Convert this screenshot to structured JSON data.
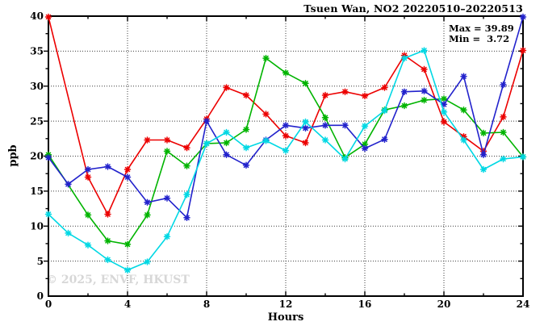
{
  "window": {
    "title": "Tsuen Wan, NO2 20220510–20220513"
  },
  "stats": {
    "max_line": "Max = 39.89",
    "min_line": "Min =  3.72"
  },
  "watermark": "© 2025, ENVF, HKUST",
  "chart_data": {
    "type": "line",
    "title": "Tsuen Wan, NO2 20220510–20220513",
    "xlabel": "Hours",
    "ylabel": "ppb",
    "xlim": [
      0,
      24
    ],
    "ylim": [
      0,
      40
    ],
    "x_ticks": [
      0,
      4,
      8,
      12,
      16,
      20,
      24
    ],
    "x_minor_step": 2,
    "y_ticks": [
      0,
      5,
      10,
      15,
      20,
      25,
      30,
      35,
      40
    ],
    "y_minor_step": 2.5,
    "grid": "dotted lines at major ticks",
    "legend": "none",
    "max_value": 39.89,
    "min_value": 3.72,
    "x": [
      0,
      1,
      2,
      3,
      4,
      5,
      6,
      7,
      8,
      9,
      10,
      11,
      12,
      13,
      14,
      15,
      16,
      17,
      18,
      19,
      20,
      21,
      22,
      23,
      24
    ],
    "series": [
      {
        "name": "series-red",
        "color": "#ec0000",
        "values": [
          39.89,
          null,
          17.0,
          11.7,
          18.1,
          22.3,
          22.3,
          21.2,
          25.3,
          29.8,
          28.7,
          26.0,
          22.9,
          21.9,
          28.7,
          29.2,
          28.6,
          29.8,
          34.4,
          32.4,
          24.9,
          22.8,
          20.7,
          25.6,
          35.1
        ]
      },
      {
        "name": "series-green",
        "color": "#00b400",
        "values": [
          20.2,
          null,
          11.6,
          7.9,
          7.4,
          11.6,
          20.7,
          18.6,
          21.8,
          21.9,
          23.8,
          34.0,
          31.9,
          30.4,
          25.5,
          19.8,
          21.7,
          26.6,
          27.2,
          28.0,
          28.2,
          26.6,
          23.3,
          23.4,
          19.9
        ]
      },
      {
        "name": "series-blue",
        "color": "#2222cc",
        "values": [
          19.8,
          16.0,
          18.1,
          18.5,
          17.0,
          13.4,
          14.0,
          11.2,
          25.0,
          20.2,
          18.7,
          22.3,
          24.4,
          24.0,
          24.4,
          24.4,
          21.1,
          22.4,
          29.2,
          29.3,
          27.4,
          31.4,
          20.2,
          30.2,
          39.89
        ]
      },
      {
        "name": "series-cyan",
        "color": "#00d8e4",
        "values": [
          11.7,
          9.0,
          7.3,
          5.2,
          3.72,
          4.9,
          8.5,
          14.5,
          21.8,
          23.4,
          21.2,
          22.2,
          20.8,
          24.9,
          22.3,
          19.6,
          24.3,
          26.5,
          34.0,
          35.1,
          26.3,
          22.3,
          18.1,
          19.6,
          19.9
        ]
      }
    ]
  }
}
